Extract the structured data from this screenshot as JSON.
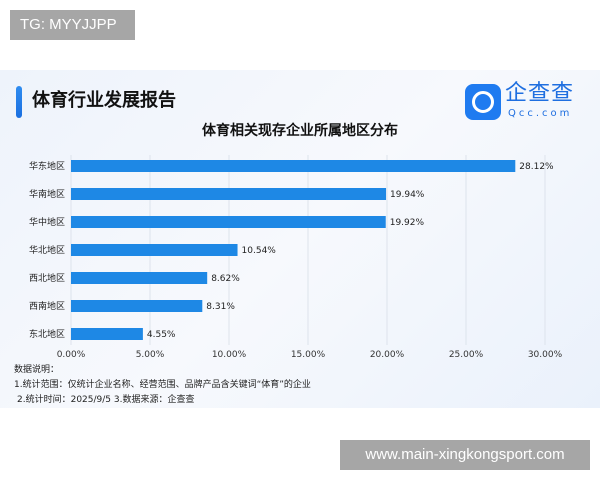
{
  "watermark_top": "TG: MYYJJPP",
  "watermark_bottom": "www.main-xingkongsport.com",
  "report_title": "体育行业发展报告",
  "brand": {
    "name": "企查查",
    "sub": "Qcc.com",
    "color": "#1f7bf0"
  },
  "notes": [
    "数据说明：",
    "1.统计范围：仅统计企业名称、经营范围、品牌产品含关键词“体育”的企业",
    "2.统计时间：2025/9/5  3.数据来源：企查查"
  ],
  "chart_data": {
    "type": "bar",
    "orientation": "horizontal",
    "title": "体育相关现存企业所属地区分布",
    "categories": [
      "华东地区",
      "华南地区",
      "华中地区",
      "华北地区",
      "西北地区",
      "西南地区",
      "东北地区"
    ],
    "values": [
      28.12,
      19.94,
      19.92,
      10.54,
      8.62,
      8.31,
      4.55
    ],
    "value_labels": [
      "28.12%",
      "19.94%",
      "19.92%",
      "10.54%",
      "8.62%",
      "8.31%",
      "4.55%"
    ],
    "xlim": [
      0,
      30
    ],
    "xticks": [
      "0.00%",
      "5.00%",
      "10.00%",
      "15.00%",
      "20.00%",
      "25.00%",
      "30.00%"
    ],
    "grid": true,
    "bar_color": "#1e88e5"
  }
}
